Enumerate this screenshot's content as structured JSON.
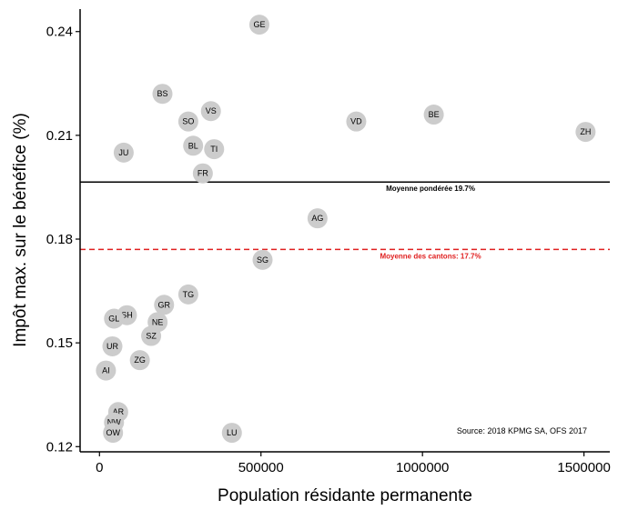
{
  "chart_data": {
    "type": "scatter",
    "xlabel": "Population résidante permanente",
    "ylabel": "Impôt max. sur le bénéfice (%)",
    "xlim": [
      -60000,
      1580000
    ],
    "ylim": [
      0.1185,
      0.2465
    ],
    "x_ticks": [
      {
        "value": 0,
        "label": "0"
      },
      {
        "value": 500000,
        "label": "500000"
      },
      {
        "value": 1000000,
        "label": "1000000"
      },
      {
        "value": 1500000,
        "label": "1500000"
      }
    ],
    "y_ticks": [
      {
        "value": 0.12,
        "label": "0.12"
      },
      {
        "value": 0.15,
        "label": "0.15"
      },
      {
        "value": 0.18,
        "label": "0.18"
      },
      {
        "value": 0.21,
        "label": "0.21"
      },
      {
        "value": 0.24,
        "label": "0.24"
      }
    ],
    "points": [
      {
        "label": "GE",
        "x": 495000,
        "y": 0.242
      },
      {
        "label": "BS",
        "x": 195000,
        "y": 0.222
      },
      {
        "label": "VS",
        "x": 345000,
        "y": 0.217
      },
      {
        "label": "SO",
        "x": 275000,
        "y": 0.214
      },
      {
        "label": "VD",
        "x": 795000,
        "y": 0.214
      },
      {
        "label": "BE",
        "x": 1035000,
        "y": 0.216
      },
      {
        "label": "ZH",
        "x": 1505000,
        "y": 0.211
      },
      {
        "label": "BL",
        "x": 290000,
        "y": 0.207
      },
      {
        "label": "TI",
        "x": 355000,
        "y": 0.206
      },
      {
        "label": "JU",
        "x": 75000,
        "y": 0.205
      },
      {
        "label": "FR",
        "x": 320000,
        "y": 0.199
      },
      {
        "label": "AG",
        "x": 675000,
        "y": 0.186
      },
      {
        "label": "SG",
        "x": 505000,
        "y": 0.174
      },
      {
        "label": "TG",
        "x": 275000,
        "y": 0.164
      },
      {
        "label": "GR",
        "x": 200000,
        "y": 0.161
      },
      {
        "label": "SH",
        "x": 85000,
        "y": 0.158
      },
      {
        "label": "GL",
        "x": 45000,
        "y": 0.157
      },
      {
        "label": "NE",
        "x": 180000,
        "y": 0.156
      },
      {
        "label": "SZ",
        "x": 160000,
        "y": 0.152
      },
      {
        "label": "UR",
        "x": 40000,
        "y": 0.149
      },
      {
        "label": "ZG",
        "x": 125000,
        "y": 0.145
      },
      {
        "label": "AI",
        "x": 20000,
        "y": 0.142
      },
      {
        "label": "AR",
        "x": 58000,
        "y": 0.13
      },
      {
        "label": "NW",
        "x": 45000,
        "y": 0.127
      },
      {
        "label": "OW",
        "x": 42000,
        "y": 0.124
      },
      {
        "label": "LU",
        "x": 410000,
        "y": 0.124
      }
    ],
    "reference_lines": [
      {
        "name": "weighted-mean",
        "y": 0.1965,
        "label": "Moyenne pondérée 19.7%",
        "color": "#000000",
        "dashed": false
      },
      {
        "name": "canton-mean",
        "y": 0.177,
        "label": "Moyenne des cantons: 17.7%",
        "color": "#e02020",
        "dashed": true
      }
    ],
    "source": "Source: 2018 KPMG SA, OFS 2017",
    "point_color": "#cccccc"
  }
}
